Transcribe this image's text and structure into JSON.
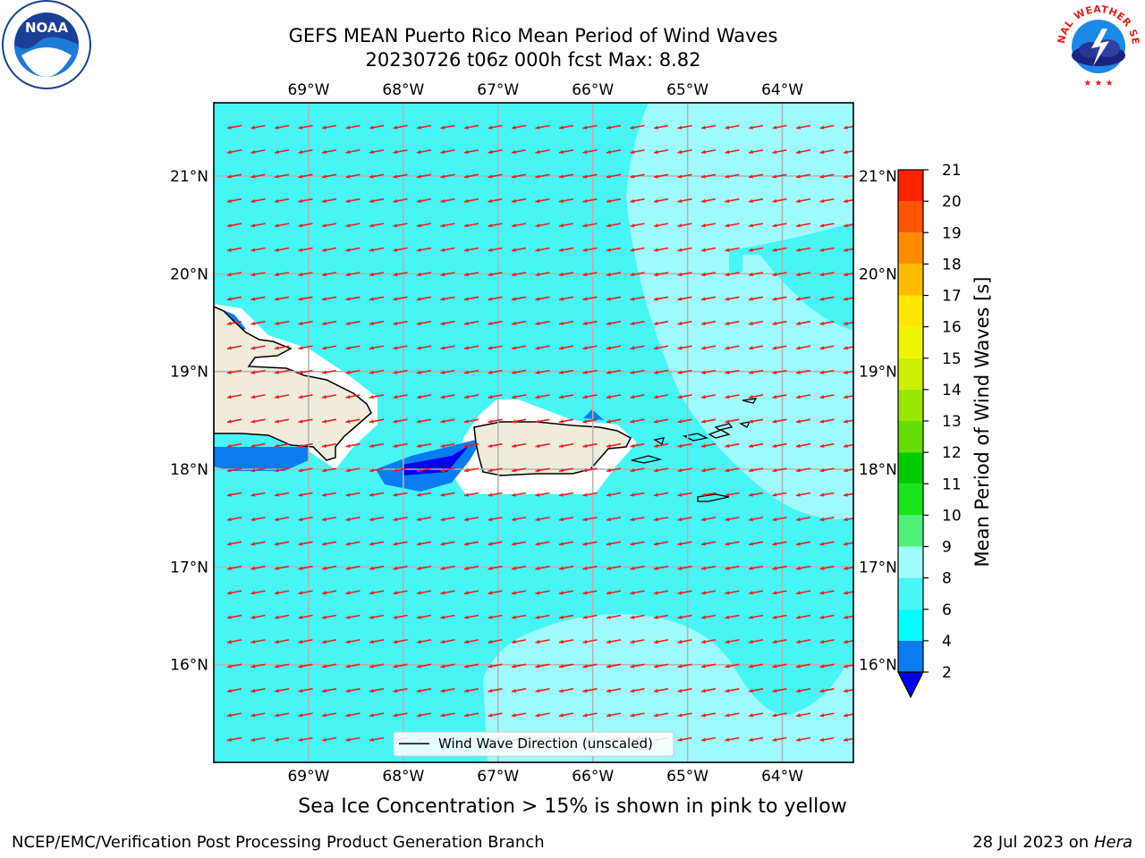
{
  "title": {
    "line1": "GEFS MEAN Puerto Rico Mean Period of Wind Waves",
    "line2": "20230726 t06z 000h fcst   Max: 8.82"
  },
  "map": {
    "lon_ticks": [
      "69°W",
      "68°W",
      "67°W",
      "66°W",
      "65°W",
      "64°W"
    ],
    "lat_ticks": [
      "21°N",
      "20°N",
      "19°N",
      "18°N",
      "17°N",
      "16°N"
    ],
    "lon_range": [
      -70.0,
      -63.25
    ],
    "lat_range": [
      15.0,
      21.75
    ],
    "arrow_direction": "westward, slightly south",
    "colors": {
      "ocean": "#47f5f5",
      "light_band": "#9ffbfb",
      "land": "#efecdc",
      "arrow": "#e8201a",
      "deep_blue": "#0000ee",
      "mid_blue": "#0a7cf0"
    }
  },
  "legend": {
    "label": "Wind Wave Direction (unscaled)"
  },
  "colorbar": {
    "label": "Mean Period of Wind Waves [s]",
    "ticks": [
      "2",
      "4",
      "6",
      "8",
      "9",
      "10",
      "11",
      "12",
      "13",
      "14",
      "15",
      "16",
      "17",
      "18",
      "19",
      "20",
      "21"
    ],
    "colors": [
      "#0a7cf0",
      "#00ffff",
      "#47f5f5",
      "#9ffbfb",
      "#4ef07a",
      "#19e619",
      "#00cc00",
      "#66dd00",
      "#99e600",
      "#ccee00",
      "#eef500",
      "#ffe600",
      "#ffbb00",
      "#ff8c00",
      "#ff5500",
      "#ff2200",
      "#ee0000"
    ],
    "under_color": "#0000ee"
  },
  "notes": {
    "ice": "Sea Ice Concentration > 15% is shown in pink to yellow"
  },
  "footer": {
    "left": "NCEP/EMC/Verification Post Processing Product Generation Branch",
    "date": "28 Jul 2023 on ",
    "machine": "Hera"
  },
  "logos": {
    "noaa": "NOAA",
    "nws": "NATIONAL WEATHER SERVICE"
  }
}
